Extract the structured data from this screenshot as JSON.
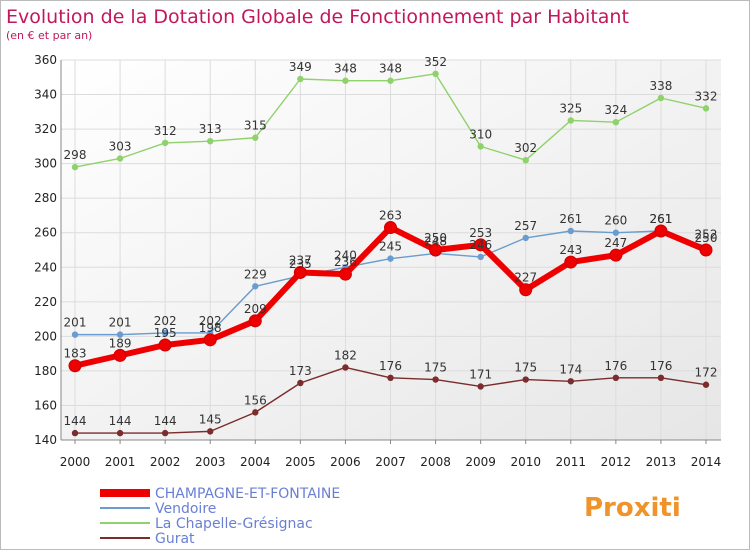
{
  "colors": {
    "title": "#c2185b",
    "axis_text": "#222222",
    "grid": "#dcdcdc"
  },
  "chart_data": {
    "type": "line",
    "title": "Evolution de la Dotation Globale de Fonctionnement par Habitant",
    "subtitle": "(en € et par an)",
    "xlabel": "",
    "ylabel": "",
    "ylim": [
      140,
      360
    ],
    "yticks": [
      140,
      160,
      180,
      200,
      220,
      240,
      260,
      280,
      300,
      320,
      340,
      360
    ],
    "categories": [
      "2000",
      "2001",
      "2002",
      "2003",
      "2004",
      "2005",
      "2006",
      "2007",
      "2008",
      "2009",
      "2010",
      "2011",
      "2012",
      "2013",
      "2014"
    ],
    "grid": true,
    "legend_position": "bottom-left",
    "series": [
      {
        "name": "Gurat",
        "color": "#7b2c2c",
        "emphasis": false,
        "values": [
          144,
          144,
          144,
          145,
          156,
          173,
          182,
          176,
          175,
          171,
          175,
          174,
          176,
          176,
          172
        ]
      },
      {
        "name": "La Chapelle-Grésignac",
        "color": "#8fd16b",
        "emphasis": false,
        "values": [
          298,
          303,
          312,
          313,
          315,
          349,
          348,
          348,
          352,
          310,
          302,
          325,
          324,
          338,
          332
        ]
      },
      {
        "name": "Vendoire",
        "color": "#6a9ccf",
        "emphasis": false,
        "values": [
          201,
          201,
          202,
          202,
          229,
          235,
          240,
          245,
          248,
          246,
          257,
          261,
          260,
          261,
          252
        ]
      },
      {
        "name": "CHAMPAGNE-ET-FONTAINE",
        "color": "#ee0000",
        "emphasis": true,
        "values": [
          183,
          189,
          195,
          198,
          209,
          237,
          236,
          263,
          250,
          253,
          227,
          243,
          247,
          261,
          250
        ]
      }
    ]
  },
  "brand": {
    "logo_text": "Proxiti"
  }
}
